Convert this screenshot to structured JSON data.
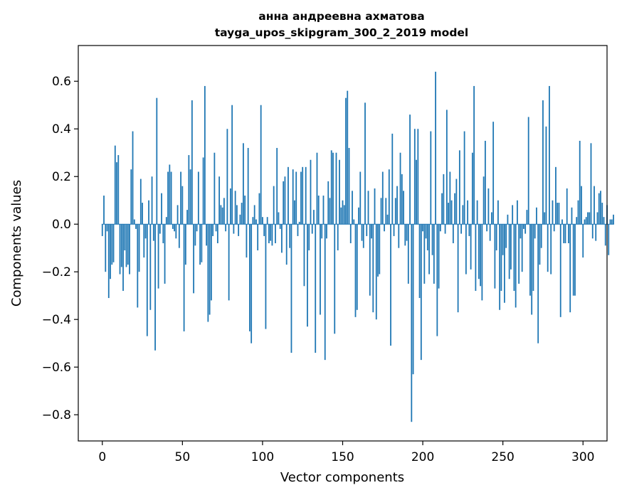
{
  "chart_data": {
    "type": "bar",
    "title_line1": "анна андреевна ахматова",
    "title_line2": "tayga_upos_skipgram_300_2_2019 model",
    "xlabel": "Vector components",
    "ylabel": "Components values",
    "xlim": [
      -15,
      315
    ],
    "ylim": [
      -0.91,
      0.75
    ],
    "xticks": [
      0,
      50,
      100,
      150,
      200,
      250,
      300
    ],
    "xtick_labels": [
      "0",
      "50",
      "100",
      "150",
      "200",
      "250",
      "300"
    ],
    "yticks": [
      -0.8,
      -0.6,
      -0.4,
      -0.2,
      0.0,
      0.2,
      0.4,
      0.6
    ],
    "ytick_labels": [
      "−0.8",
      "−0.6",
      "−0.4",
      "−0.2",
      "0.0",
      "0.2",
      "0.4",
      "0.6"
    ],
    "bar_color": "#1f77b4",
    "values": [
      -0.05,
      0.12,
      -0.2,
      -0.03,
      -0.31,
      -0.23,
      -0.17,
      -0.16,
      0.33,
      0.26,
      0.29,
      -0.21,
      -0.18,
      -0.28,
      -0.11,
      -0.18,
      -0.17,
      -0.21,
      0.23,
      0.39,
      0.02,
      -0.02,
      -0.35,
      -0.2,
      0.19,
      0.09,
      -0.14,
      -0.06,
      -0.47,
      0.1,
      -0.36,
      0.2,
      -0.07,
      -0.53,
      0.53,
      -0.27,
      -0.04,
      0.13,
      -0.08,
      -0.25,
      0.03,
      0.22,
      0.25,
      0.22,
      -0.02,
      -0.03,
      -0.06,
      0.08,
      -0.1,
      0.22,
      0.16,
      -0.45,
      -0.17,
      0.06,
      0.29,
      0.23,
      0.52,
      -0.29,
      -0.09,
      -0.03,
      0.22,
      -0.17,
      -0.16,
      0.28,
      0.58,
      -0.09,
      -0.41,
      -0.38,
      -0.32,
      -0.05,
      0.3,
      -0.03,
      -0.08,
      0.2,
      0.08,
      0.07,
      0.11,
      -0.03,
      0.4,
      -0.32,
      0.15,
      0.5,
      -0.04,
      0.14,
      0.08,
      -0.05,
      0.04,
      0.09,
      0.34,
      0.12,
      -0.14,
      0.32,
      -0.45,
      -0.5,
      0.03,
      0.08,
      0.02,
      -0.11,
      0.13,
      0.5,
      0.03,
      -0.05,
      -0.44,
      0.03,
      -0.08,
      -0.07,
      -0.09,
      0.16,
      -0.08,
      0.32,
      0.05,
      -0.02,
      -0.12,
      0.18,
      0.2,
      -0.17,
      0.24,
      -0.1,
      -0.54,
      0.23,
      0.1,
      0.22,
      -0.05,
      0.01,
      0.22,
      0.24,
      -0.26,
      0.24,
      -0.43,
      -0.11,
      0.27,
      -0.04,
      0.06,
      -0.54,
      0.3,
      0.12,
      -0.38,
      -0.06,
      0.12,
      -0.57,
      -0.06,
      0.18,
      0.11,
      0.31,
      0.3,
      -0.46,
      0.3,
      -0.11,
      0.27,
      0.07,
      0.1,
      0.08,
      0.53,
      0.56,
      0.32,
      -0.08,
      0.14,
      0.02,
      -0.39,
      -0.36,
      0.07,
      0.22,
      -0.07,
      -0.1,
      0.51,
      -0.05,
      0.14,
      -0.3,
      -0.06,
      -0.37,
      0.15,
      -0.4,
      -0.22,
      -0.21,
      0.11,
      0.22,
      -0.03,
      0.11,
      0.04,
      0.23,
      -0.51,
      0.38,
      -0.05,
      0.11,
      0.16,
      -0.1,
      0.3,
      0.21,
      0.14,
      -0.09,
      -0.07,
      -0.25,
      0.46,
      -0.83,
      -0.63,
      0.4,
      0.27,
      0.4,
      -0.31,
      -0.57,
      -0.03,
      -0.25,
      -0.06,
      -0.11,
      -0.21,
      0.39,
      -0.13,
      -0.25,
      0.64,
      -0.47,
      -0.27,
      -0.03,
      0.13,
      0.21,
      -0.04,
      0.48,
      0.09,
      0.22,
      0.1,
      -0.08,
      0.13,
      0.19,
      -0.37,
      0.31,
      -0.04,
      0.08,
      0.39,
      -0.21,
      0.1,
      -0.05,
      -0.19,
      0.3,
      0.58,
      -0.28,
      0.1,
      -0.23,
      -0.26,
      -0.32,
      0.2,
      0.35,
      -0.03,
      0.15,
      -0.07,
      0.05,
      0.43,
      -0.27,
      -0.11,
      0.1,
      -0.36,
      -0.28,
      -0.13,
      -0.33,
      -0.1,
      0.04,
      -0.23,
      -0.19,
      0.08,
      -0.28,
      -0.35,
      0.1,
      -0.25,
      -0.06,
      -0.2,
      -0.02,
      -0.04,
      0.06,
      0.45,
      -0.3,
      -0.38,
      -0.28,
      -0.06,
      0.07,
      -0.5,
      -0.17,
      -0.1,
      0.52,
      0.05,
      0.41,
      -0.2,
      0.58,
      -0.21,
      0.1,
      -0.03,
      0.24,
      0.09,
      0.09,
      -0.39,
      0.02,
      -0.08,
      -0.08,
      0.15,
      -0.08,
      -0.37,
      0.07,
      -0.3,
      -0.3,
      0.03,
      0.1,
      0.35,
      0.16,
      -0.14,
      0.02,
      0.03,
      0.05,
      0.05,
      0.34,
      -0.06,
      0.16,
      -0.07,
      0.05,
      0.13,
      0.14,
      0.09,
      0.03,
      -0.09,
      0.08,
      -0.13,
      0.02,
      0.02,
      0.04
    ]
  }
}
